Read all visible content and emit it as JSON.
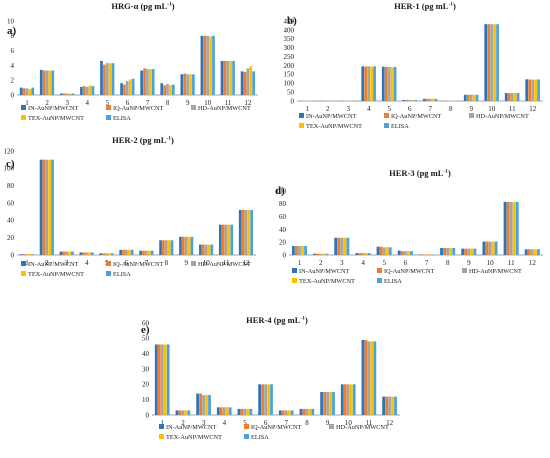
{
  "colors": [
    "#2e75b6",
    "#ed7d31",
    "#a5a5a5",
    "#ffc000",
    "#4aa3d8"
  ],
  "legend": [
    "IN-AuNP/MWCNT",
    "IQ-AuNP/MWCNT",
    "HD-AuNP/MWCNT",
    "TEX-AuNP/MWCNT",
    "ELISA"
  ],
  "categories": [
    "1",
    "2",
    "3",
    "4",
    "5",
    "6",
    "7",
    "8",
    "9",
    "10",
    "11",
    "12"
  ],
  "chart_data": [
    {
      "type": "bar",
      "panel_label": "a)",
      "title": "HRG-α (pg mL",
      "title_sup": "-1",
      "title_close": ")",
      "ylim": [
        0,
        10
      ],
      "yticks": [
        "0",
        "2",
        "4",
        "6",
        "8",
        "10"
      ],
      "categories": [
        "1",
        "2",
        "3",
        "4",
        "5",
        "6",
        "7",
        "8",
        "9",
        "10",
        "11",
        "12"
      ],
      "series": [
        {
          "name": "IN-AuNP/MWCNT",
          "values": [
            1.0,
            3.4,
            0.2,
            1.1,
            4.6,
            1.6,
            3.3,
            1.6,
            2.8,
            8.0,
            4.6,
            3.2
          ]
        },
        {
          "name": "IQ-AuNP/MWCNT",
          "values": [
            0.9,
            3.3,
            0.2,
            1.2,
            4.1,
            1.4,
            3.6,
            1.3,
            2.9,
            8.0,
            4.6,
            3.1
          ]
        },
        {
          "name": "HD-AuNP/MWCNT",
          "values": [
            0.9,
            3.3,
            0.2,
            1.1,
            4.3,
            1.9,
            3.5,
            1.5,
            2.8,
            8.0,
            4.6,
            3.6
          ]
        },
        {
          "name": "TEX-AuNP/MWCNT",
          "values": [
            0.8,
            3.3,
            0.2,
            1.3,
            4.3,
            2.1,
            3.5,
            1.3,
            2.8,
            7.9,
            4.6,
            3.9
          ]
        },
        {
          "name": "ELISA",
          "values": [
            1.0,
            3.3,
            0.2,
            1.2,
            4.3,
            2.2,
            3.5,
            1.4,
            2.8,
            8.0,
            4.6,
            3.2
          ]
        }
      ]
    },
    {
      "type": "bar",
      "panel_label": "b)",
      "title": "HER-1 (pg mL",
      "title_sup": "-1",
      "title_close": ")",
      "ylim": [
        0,
        450
      ],
      "yticks": [
        "0",
        "50",
        "100",
        "150",
        "200",
        "250",
        "300",
        "350",
        "400",
        "450"
      ],
      "categories": [
        "1",
        "2",
        "3",
        "4",
        "5",
        "6",
        "7",
        "8",
        "9",
        "10",
        "11",
        "12"
      ],
      "series": [
        {
          "name": "IN-AuNP/MWCNT",
          "values": [
            1,
            1,
            1,
            195,
            193,
            6,
            12,
            1,
            35,
            432,
            45,
            122
          ]
        },
        {
          "name": "IQ-AuNP/MWCNT",
          "values": [
            1,
            1,
            1,
            194,
            192,
            6,
            13,
            1,
            35,
            432,
            44,
            121
          ]
        },
        {
          "name": "HD-AuNP/MWCNT",
          "values": [
            1,
            1,
            1,
            195,
            191,
            6,
            12,
            1,
            36,
            432,
            44,
            120
          ]
        },
        {
          "name": "TEX-AuNP/MWCNT",
          "values": [
            1,
            1,
            1,
            194,
            190,
            6,
            13,
            1,
            35,
            432,
            45,
            121
          ]
        },
        {
          "name": "ELISA",
          "values": [
            1,
            1,
            1,
            195,
            191,
            6,
            12,
            1,
            35,
            432,
            45,
            121
          ]
        }
      ]
    },
    {
      "type": "bar",
      "panel_label": "c)",
      "title": "HER-2 (pg mL",
      "title_sup": "-1",
      "title_close": ")",
      "ylim": [
        0,
        120
      ],
      "yticks": [
        "0",
        "20",
        "40",
        "60",
        "80",
        "100",
        "120"
      ],
      "categories": [
        "1",
        "2",
        "3",
        "4",
        "5",
        "6",
        "7",
        "8",
        "9",
        "10",
        "11",
        "12"
      ],
      "series": [
        {
          "name": "IN-AuNP/MWCNT",
          "values": [
            1,
            110,
            4,
            3,
            2,
            6,
            5,
            17,
            21,
            12,
            35,
            52
          ]
        },
        {
          "name": "IQ-AuNP/MWCNT",
          "values": [
            1,
            110,
            4,
            3,
            2,
            6,
            5,
            17,
            21,
            12,
            35,
            52
          ]
        },
        {
          "name": "HD-AuNP/MWCNT",
          "values": [
            1,
            110,
            4,
            3,
            2,
            6,
            5,
            17,
            21,
            12,
            35,
            52
          ]
        },
        {
          "name": "TEX-AuNP/MWCNT",
          "values": [
            1,
            110,
            4,
            3,
            2,
            6,
            5,
            17,
            21,
            12,
            35,
            52
          ]
        },
        {
          "name": "ELISA",
          "values": [
            1,
            110,
            4,
            3,
            2,
            6,
            5,
            17,
            21,
            12,
            35,
            52
          ]
        }
      ]
    },
    {
      "type": "bar",
      "panel_label": "d)",
      "title": "HER-3 (pg mL",
      "title_sup": "-1",
      "title_close": ")",
      "ylim": [
        0,
        100
      ],
      "yticks": [
        "0",
        "20",
        "40",
        "60",
        "80",
        "100"
      ],
      "categories": [
        "1",
        "2",
        "3",
        "4",
        "5",
        "6",
        "7",
        "8",
        "9",
        "10",
        "11",
        "12"
      ],
      "series": [
        {
          "name": "IN-AuNP/MWCNT",
          "values": [
            14,
            2,
            27,
            3,
            13,
            7,
            1,
            11,
            10,
            21,
            83,
            9
          ]
        },
        {
          "name": "IQ-AuNP/MWCNT",
          "values": [
            14,
            2,
            27,
            3,
            13,
            6,
            1,
            11,
            10,
            21,
            83,
            9
          ]
        },
        {
          "name": "HD-AuNP/MWCNT",
          "values": [
            14,
            2,
            27,
            3,
            12,
            6,
            1,
            11,
            10,
            21,
            83,
            9
          ]
        },
        {
          "name": "TEX-AuNP/MWCNT",
          "values": [
            14,
            2,
            27,
            3,
            12,
            6,
            1,
            11,
            10,
            21,
            83,
            9
          ]
        },
        {
          "name": "ELISA",
          "values": [
            14,
            2,
            27,
            3,
            12,
            6,
            1,
            11,
            10,
            21,
            83,
            9
          ]
        }
      ]
    },
    {
      "type": "bar",
      "panel_label": "e)",
      "title": "HER-4 (pg mL",
      "title_sup": "-1",
      "title_close": ")",
      "ylim": [
        0,
        60
      ],
      "yticks": [
        "0",
        "10",
        "20",
        "30",
        "40",
        "50",
        "60"
      ],
      "categories": [
        "1",
        "2",
        "3",
        "4",
        "5",
        "6",
        "7",
        "8",
        "9",
        "10",
        "11",
        "12"
      ],
      "series": [
        {
          "name": "IN-AuNP/MWCNT",
          "values": [
            46,
            3,
            14,
            5,
            4,
            20,
            3,
            4,
            15,
            20,
            49,
            12
          ]
        },
        {
          "name": "IQ-AuNP/MWCNT",
          "values": [
            46,
            3,
            14,
            5,
            4,
            20,
            3,
            4,
            15,
            20,
            49,
            12
          ]
        },
        {
          "name": "HD-AuNP/MWCNT",
          "values": [
            46,
            3,
            13,
            5,
            4,
            20,
            3,
            4,
            15,
            20,
            48,
            12
          ]
        },
        {
          "name": "TEX-AuNP/MWCNT",
          "values": [
            46,
            3,
            13,
            5,
            4,
            20,
            3,
            4,
            15,
            20,
            48,
            12
          ]
        },
        {
          "name": "ELISA",
          "values": [
            46,
            3,
            13,
            5,
            4,
            20,
            3,
            4,
            15,
            20,
            48,
            12
          ]
        }
      ]
    }
  ]
}
